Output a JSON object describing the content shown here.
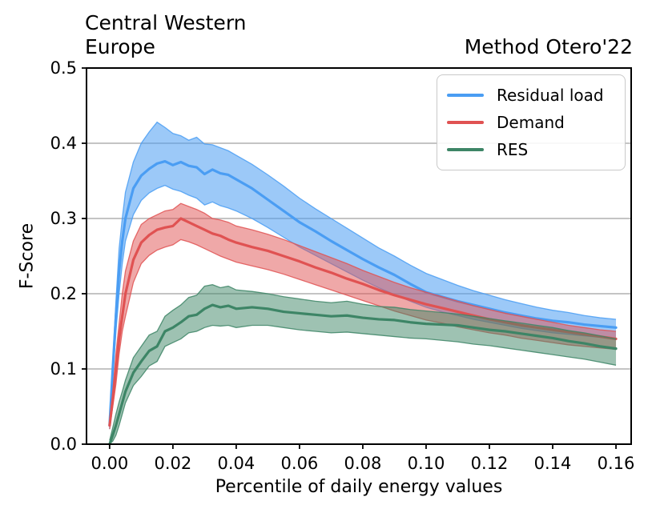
{
  "chart_data": {
    "type": "line",
    "title_left_lines": [
      "Central Western",
      "Europe"
    ],
    "title_right": "Method Otero'22",
    "xlabel": "Percentile of daily energy values",
    "ylabel": "F-Score",
    "xlim": [
      -0.0073,
      0.1648
    ],
    "ylim": [
      0,
      0.5
    ],
    "grid": "horizontal",
    "grid_color": "#b0b0b0",
    "xticks": {
      "values": [
        0.0,
        0.02,
        0.04,
        0.06,
        0.08,
        0.1,
        0.12,
        0.14,
        0.16
      ],
      "labels": [
        "0.00",
        "0.02",
        "0.04",
        "0.06",
        "0.08",
        "0.10",
        "0.12",
        "0.14",
        "0.16"
      ]
    },
    "yticks": {
      "values": [
        0.0,
        0.1,
        0.2,
        0.3,
        0.4,
        0.5
      ],
      "labels": [
        "0.0",
        "0.1",
        "0.2",
        "0.3",
        "0.4",
        "0.5"
      ]
    },
    "legend": {
      "position": "upper right"
    },
    "x": [
      0,
      0.001,
      0.002,
      0.003,
      0.004,
      0.005,
      0.0075,
      0.01,
      0.0125,
      0.015,
      0.0175,
      0.02,
      0.0225,
      0.025,
      0.0275,
      0.03,
      0.0325,
      0.035,
      0.0375,
      0.04,
      0.045,
      0.05,
      0.055,
      0.06,
      0.065,
      0.07,
      0.075,
      0.08,
      0.085,
      0.09,
      0.095,
      0.1,
      0.105,
      0.11,
      0.115,
      0.12,
      0.125,
      0.13,
      0.135,
      0.14,
      0.145,
      0.15,
      0.155,
      0.16
    ],
    "series": [
      {
        "name": "Residual load",
        "color": "#4A9DF3",
        "band_opacity": 0.55,
        "values": [
          0.025,
          0.1,
          0.17,
          0.23,
          0.27,
          0.3,
          0.34,
          0.357,
          0.366,
          0.373,
          0.376,
          0.371,
          0.375,
          0.37,
          0.368,
          0.359,
          0.365,
          0.36,
          0.358,
          0.352,
          0.34,
          0.325,
          0.31,
          0.295,
          0.283,
          0.27,
          0.258,
          0.246,
          0.235,
          0.225,
          0.213,
          0.202,
          0.196,
          0.19,
          0.185,
          0.18,
          0.175,
          0.171,
          0.167,
          0.164,
          0.162,
          0.159,
          0.157,
          0.155
        ],
        "upper": [
          0.03,
          0.11,
          0.19,
          0.26,
          0.3,
          0.335,
          0.375,
          0.4,
          0.415,
          0.428,
          0.421,
          0.413,
          0.41,
          0.404,
          0.408,
          0.399,
          0.398,
          0.394,
          0.39,
          0.384,
          0.372,
          0.358,
          0.343,
          0.327,
          0.313,
          0.3,
          0.287,
          0.274,
          0.261,
          0.25,
          0.238,
          0.227,
          0.219,
          0.211,
          0.204,
          0.198,
          0.192,
          0.187,
          0.182,
          0.178,
          0.175,
          0.171,
          0.168,
          0.166
        ],
        "lower": [
          0.02,
          0.09,
          0.15,
          0.2,
          0.24,
          0.27,
          0.305,
          0.324,
          0.334,
          0.34,
          0.344,
          0.339,
          0.336,
          0.331,
          0.327,
          0.318,
          0.322,
          0.317,
          0.314,
          0.31,
          0.3,
          0.288,
          0.275,
          0.262,
          0.251,
          0.24,
          0.229,
          0.218,
          0.208,
          0.199,
          0.19,
          0.182,
          0.176,
          0.171,
          0.166,
          0.162,
          0.158,
          0.154,
          0.151,
          0.148,
          0.146,
          0.144,
          0.142,
          0.14
        ]
      },
      {
        "name": "Demand",
        "color": "#E05252",
        "band_opacity": 0.5,
        "values": [
          0.025,
          0.06,
          0.1,
          0.14,
          0.17,
          0.2,
          0.245,
          0.268,
          0.278,
          0.285,
          0.288,
          0.29,
          0.3,
          0.295,
          0.29,
          0.285,
          0.28,
          0.277,
          0.272,
          0.268,
          0.262,
          0.257,
          0.25,
          0.243,
          0.235,
          0.228,
          0.22,
          0.213,
          0.205,
          0.198,
          0.192,
          0.186,
          0.181,
          0.176,
          0.171,
          0.166,
          0.162,
          0.158,
          0.155,
          0.152,
          0.149,
          0.146,
          0.143,
          0.14
        ],
        "upper": [
          0.03,
          0.07,
          0.12,
          0.16,
          0.2,
          0.23,
          0.27,
          0.292,
          0.3,
          0.305,
          0.31,
          0.312,
          0.32,
          0.316,
          0.312,
          0.307,
          0.3,
          0.298,
          0.295,
          0.29,
          0.285,
          0.279,
          0.272,
          0.264,
          0.256,
          0.248,
          0.24,
          0.231,
          0.223,
          0.215,
          0.208,
          0.202,
          0.196,
          0.19,
          0.184,
          0.179,
          0.174,
          0.17,
          0.166,
          0.162,
          0.158,
          0.155,
          0.152,
          0.15
        ],
        "lower": [
          0.02,
          0.05,
          0.08,
          0.12,
          0.15,
          0.17,
          0.215,
          0.24,
          0.251,
          0.258,
          0.262,
          0.265,
          0.272,
          0.269,
          0.265,
          0.26,
          0.255,
          0.25,
          0.246,
          0.242,
          0.237,
          0.232,
          0.226,
          0.219,
          0.212,
          0.205,
          0.198,
          0.191,
          0.184,
          0.177,
          0.171,
          0.165,
          0.161,
          0.156,
          0.152,
          0.148,
          0.145,
          0.141,
          0.138,
          0.135,
          0.132,
          0.13,
          0.128,
          0.126
        ]
      },
      {
        "name": "RES",
        "color": "#3D8566",
        "band_opacity": 0.5,
        "values": [
          0,
          0.012,
          0.025,
          0.04,
          0.055,
          0.07,
          0.095,
          0.11,
          0.124,
          0.13,
          0.15,
          0.155,
          0.162,
          0.17,
          0.172,
          0.18,
          0.185,
          0.182,
          0.184,
          0.18,
          0.182,
          0.18,
          0.176,
          0.174,
          0.172,
          0.17,
          0.171,
          0.168,
          0.166,
          0.165,
          0.162,
          0.16,
          0.159,
          0.158,
          0.155,
          0.152,
          0.15,
          0.147,
          0.144,
          0.141,
          0.137,
          0.134,
          0.13,
          0.127
        ],
        "upper": [
          0.005,
          0.022,
          0.04,
          0.056,
          0.07,
          0.085,
          0.115,
          0.13,
          0.145,
          0.15,
          0.17,
          0.178,
          0.185,
          0.195,
          0.198,
          0.21,
          0.212,
          0.208,
          0.21,
          0.205,
          0.203,
          0.2,
          0.196,
          0.193,
          0.19,
          0.188,
          0.19,
          0.186,
          0.183,
          0.182,
          0.179,
          0.177,
          0.175,
          0.173,
          0.17,
          0.167,
          0.164,
          0.161,
          0.158,
          0.155,
          0.151,
          0.148,
          0.144,
          0.14
        ],
        "lower": [
          0,
          0.004,
          0.012,
          0.025,
          0.04,
          0.055,
          0.078,
          0.09,
          0.104,
          0.11,
          0.13,
          0.135,
          0.14,
          0.148,
          0.15,
          0.155,
          0.158,
          0.157,
          0.158,
          0.155,
          0.158,
          0.158,
          0.155,
          0.152,
          0.15,
          0.148,
          0.149,
          0.147,
          0.145,
          0.143,
          0.141,
          0.14,
          0.138,
          0.136,
          0.133,
          0.131,
          0.128,
          0.125,
          0.122,
          0.119,
          0.116,
          0.113,
          0.109,
          0.105
        ]
      }
    ]
  }
}
